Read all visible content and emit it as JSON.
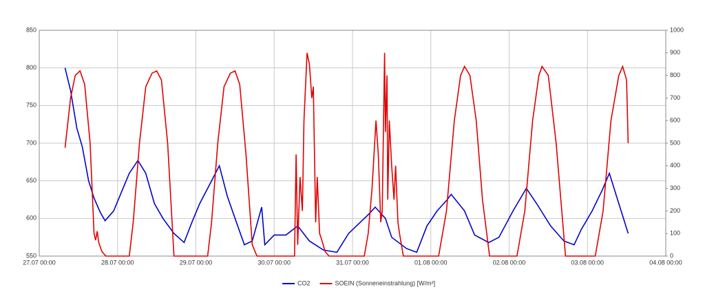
{
  "chart_data": {
    "type": "line",
    "xlim": [
      0,
      8
    ],
    "xticks": [
      {
        "value": 0,
        "label": "27.07 00:00"
      },
      {
        "value": 1,
        "label": "28.07 00:00"
      },
      {
        "value": 2,
        "label": "29.07 00:00"
      },
      {
        "value": 3,
        "label": "30.07 00:00"
      },
      {
        "value": 4,
        "label": "31.07 00:00"
      },
      {
        "value": 5,
        "label": "01.08 00:00"
      },
      {
        "value": 6,
        "label": "02.08 00:00"
      },
      {
        "value": 7,
        "label": "03.08 00:00"
      },
      {
        "value": 8,
        "label": "04.08 00:00"
      }
    ],
    "ylim": [
      550,
      850
    ],
    "yticks": [
      550,
      600,
      650,
      700,
      750,
      800,
      850
    ],
    "y2lim": [
      0,
      1000
    ],
    "y2ticks": [
      0,
      100,
      200,
      300,
      400,
      500,
      600,
      700,
      800,
      900,
      1000
    ],
    "grid": true,
    "legend": "bottom",
    "series": [
      {
        "name": "CO2",
        "color": "#0000cc",
        "x": [
          0.33,
          0.4,
          0.48,
          0.55,
          0.63,
          0.7,
          0.78,
          0.84,
          0.95,
          1.05,
          1.15,
          1.26,
          1.36,
          1.47,
          1.58,
          1.72,
          1.85,
          1.95,
          2.05,
          2.2,
          2.3,
          2.4,
          2.5,
          2.62,
          2.72,
          2.84,
          2.88,
          3.0,
          3.15,
          3.3,
          3.45,
          3.63,
          3.8,
          3.95,
          4.1,
          4.2,
          4.29,
          4.42,
          4.5,
          4.69,
          4.82,
          4.95,
          5.08,
          5.21,
          5.26,
          5.43,
          5.56,
          5.74,
          5.87,
          6.05,
          6.22,
          6.35,
          6.53,
          6.7,
          6.83,
          6.92,
          7.06,
          7.19,
          7.28,
          7.37,
          7.46,
          7.52
        ],
        "values": [
          800,
          770,
          720,
          695,
          650,
          627,
          608,
          597,
          610,
          635,
          660,
          677,
          660,
          620,
          600,
          580,
          568,
          595,
          620,
          650,
          670,
          630,
          600,
          565,
          570,
          615,
          565,
          578,
          578,
          590,
          570,
          558,
          555,
          580,
          595,
          605,
          615,
          600,
          575,
          560,
          555,
          590,
          610,
          625,
          632,
          610,
          578,
          568,
          575,
          610,
          640,
          620,
          590,
          570,
          565,
          585,
          610,
          638,
          660,
          630,
          600,
          580
        ]
      },
      {
        "name": "SOEIN (Sonneneinstrahlung) [W/m²]",
        "color": "#e00000",
        "axis": "y2",
        "x": [
          0.33,
          0.4,
          0.46,
          0.52,
          0.58,
          0.65,
          0.7,
          0.72,
          0.74,
          0.76,
          0.8,
          0.85,
          1.15,
          1.2,
          1.28,
          1.36,
          1.44,
          1.5,
          1.56,
          1.64,
          1.72,
          1.8,
          2.15,
          2.2,
          2.28,
          2.36,
          2.44,
          2.5,
          2.56,
          2.64,
          2.72,
          2.78,
          3.26,
          3.28,
          3.3,
          3.33,
          3.36,
          3.38,
          3.42,
          3.45,
          3.48,
          3.5,
          3.53,
          3.55,
          3.58,
          3.6,
          3.65,
          3.7,
          4.15,
          4.2,
          4.25,
          4.3,
          4.33,
          4.36,
          4.38,
          4.41,
          4.42,
          4.44,
          4.45,
          4.47,
          4.5,
          4.53,
          4.55,
          4.58,
          4.6,
          4.65,
          5.1,
          5.2,
          5.3,
          5.38,
          5.43,
          5.5,
          5.58,
          5.66,
          5.75,
          6.1,
          6.2,
          6.3,
          6.38,
          6.42,
          6.5,
          6.6,
          6.72,
          7.1,
          7.2,
          7.3,
          7.4,
          7.45,
          7.5,
          7.52
        ],
        "values": [
          480,
          700,
          800,
          820,
          760,
          500,
          100,
          70,
          110,
          60,
          20,
          0,
          0,
          150,
          500,
          750,
          810,
          820,
          780,
          500,
          0,
          0,
          0,
          150,
          500,
          750,
          810,
          820,
          760,
          450,
          50,
          0,
          0,
          450,
          50,
          350,
          200,
          600,
          900,
          850,
          700,
          750,
          150,
          350,
          100,
          80,
          20,
          0,
          0,
          100,
          300,
          600,
          450,
          150,
          200,
          900,
          550,
          800,
          250,
          600,
          400,
          250,
          400,
          150,
          100,
          0,
          0,
          200,
          600,
          800,
          840,
          800,
          600,
          250,
          0,
          0,
          200,
          600,
          800,
          840,
          800,
          500,
          0,
          0,
          200,
          600,
          800,
          840,
          780,
          500
        ]
      }
    ]
  }
}
